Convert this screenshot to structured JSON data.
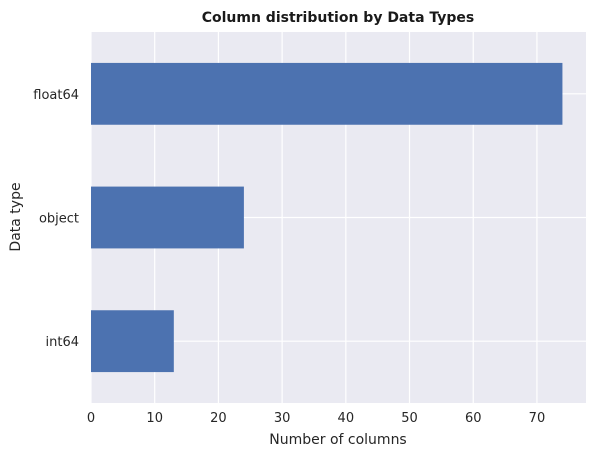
{
  "chart_data": {
    "type": "bar",
    "orientation": "horizontal",
    "title": "Column distribution by Data Types",
    "xlabel": "Number of columns",
    "ylabel": "Data type",
    "categories": [
      "float64",
      "object",
      "int64"
    ],
    "values": [
      74,
      24,
      13
    ],
    "xlim": [
      0,
      77.7
    ],
    "x_ticks": [
      0,
      10,
      20,
      30,
      40,
      50,
      60,
      70
    ],
    "grid": true,
    "legend": "none",
    "colors": {
      "bar": "#4c72b0",
      "plot_background": "#eaeaf2",
      "grid": "#ffffff"
    }
  }
}
